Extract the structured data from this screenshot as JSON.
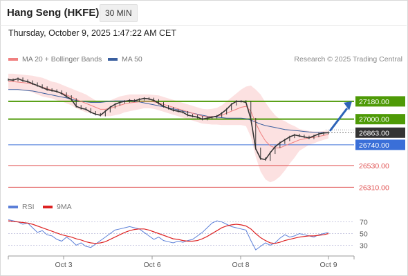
{
  "header": {
    "title": "Hang Seng (HKFE)",
    "timeframe": "30 MIN",
    "timestamp": "Thursday, October 9, 2025 1:47:22 AM CET"
  },
  "legend": {
    "ma20_label": "MA 20 + Bollinger Bands",
    "ma50_label": "MA 50",
    "ma20_color": "#f08080",
    "ma50_color": "#3a5f9f",
    "copyright": "Research © 2025 Trading Central"
  },
  "rsi_legend": {
    "rsi_label": "RSI",
    "ma9_label": "9MA",
    "rsi_color": "#5b7fd8",
    "ma9_color": "#dd2222"
  },
  "chart_data": [
    {
      "type": "line",
      "panel": "price",
      "ylim": [
        26180,
        27480
      ],
      "x_axis_labels": [
        "Oct 3",
        "Oct 6",
        "Oct 8",
        "Oct 9"
      ],
      "levels": [
        {
          "value": 27180.0,
          "label": "27180.00",
          "kind": "resistance",
          "color": "#4e9a06"
        },
        {
          "value": 27000.0,
          "label": "27000.00",
          "kind": "resistance",
          "color": "#4e9a06"
        },
        {
          "value": 26863.0,
          "label": "26863.00",
          "kind": "last-price",
          "color": "#333333"
        },
        {
          "value": 26740.0,
          "label": "26740.00",
          "kind": "pivot",
          "color": "#3a6fd8"
        },
        {
          "value": 26530.0,
          "label": "26530.00",
          "kind": "support",
          "color": "#e05050"
        },
        {
          "value": 26310.0,
          "label": "26310.00",
          "kind": "support",
          "color": "#e05050"
        }
      ],
      "forecast": {
        "from": 26880,
        "to": 27180,
        "color": "#2e64b8"
      },
      "series": [
        {
          "name": "Price",
          "color": "#333333",
          "values": [
            27400,
            27395,
            27410,
            27390,
            27380,
            27360,
            27340,
            27320,
            27300,
            27290,
            27280,
            27260,
            27230,
            27200,
            27130,
            27110,
            27100,
            27070,
            27050,
            27040,
            27080,
            27120,
            27150,
            27170,
            27180,
            27190,
            27185,
            27200,
            27210,
            27205,
            27190,
            27160,
            27130,
            27110,
            27090,
            27080,
            27070,
            27040,
            27030,
            27020,
            27000,
            27010,
            27020,
            27030,
            27060,
            27100,
            27150,
            27180,
            27180,
            27170,
            27000,
            26700,
            26600,
            26590,
            26660,
            26720,
            26760,
            26790,
            26820,
            26840,
            26830,
            26820,
            26810,
            26830,
            26850,
            26860,
            26863
          ]
        },
        {
          "name": "MA 20",
          "color": "#f08080",
          "values": [
            27380,
            27380,
            27375,
            27370,
            27365,
            27355,
            27340,
            27325,
            27310,
            27295,
            27280,
            27265,
            27245,
            27225,
            27200,
            27180,
            27160,
            27140,
            27120,
            27100,
            27100,
            27110,
            27125,
            27140,
            27155,
            27165,
            27170,
            27175,
            27180,
            27180,
            27175,
            27165,
            27150,
            27135,
            27120,
            27105,
            27090,
            27075,
            27060,
            27045,
            27030,
            27025,
            27025,
            27030,
            27040,
            27060,
            27080,
            27100,
            27120,
            27130,
            27080,
            26960,
            26860,
            26780,
            26730,
            26710,
            26710,
            26730,
            26750,
            26770,
            26790,
            26800,
            26810,
            26815,
            26825,
            26835,
            26845
          ]
        },
        {
          "name": "MA 50",
          "color": "#3a5f9f",
          "values": [
            27300,
            27300,
            27300,
            27295,
            27290,
            27285,
            27275,
            27265,
            27255,
            27245,
            27235,
            27225,
            27215,
            27200,
            27190,
            27180,
            27175,
            27170,
            27170,
            27170,
            27175,
            27180,
            27185,
            27185,
            27185,
            27185,
            27180,
            27175,
            27165,
            27155,
            27145,
            27135,
            27125,
            27115,
            27105,
            27095,
            27080,
            27070,
            27060,
            27050,
            27040,
            27030,
            27025,
            27020,
            27015,
            27010,
            27010,
            27010,
            27010,
            27005,
            26990,
            26970,
            26950,
            26935,
            26925,
            26915,
            26905,
            26895,
            26890,
            26885,
            26880,
            26875,
            26870,
            26868,
            26866,
            26865,
            26864
          ]
        },
        {
          "name": "BB Upper",
          "color": "#f7c8c8",
          "values": [
            27460,
            27460,
            27455,
            27450,
            27445,
            27440,
            27430,
            27420,
            27400,
            27380,
            27370,
            27350,
            27330,
            27310,
            27290,
            27270,
            27250,
            27220,
            27190,
            27170,
            27170,
            27190,
            27210,
            27230,
            27240,
            27250,
            27250,
            27250,
            27250,
            27250,
            27245,
            27240,
            27225,
            27210,
            27195,
            27180,
            27165,
            27150,
            27135,
            27120,
            27105,
            27100,
            27105,
            27115,
            27140,
            27180,
            27220,
            27260,
            27300,
            27330,
            27340,
            27300,
            27250,
            27170,
            27100,
            27040,
            27000,
            26980,
            26950,
            26930,
            26900,
            26890,
            26880,
            26875,
            26875,
            26880,
            26885
          ]
        },
        {
          "name": "BB Lower",
          "color": "#f7c8c8",
          "values": [
            27300,
            27300,
            27295,
            27290,
            27285,
            27270,
            27250,
            27230,
            27220,
            27210,
            27190,
            27180,
            27160,
            27140,
            27110,
            27090,
            27070,
            27060,
            27050,
            27030,
            27030,
            27030,
            27040,
            27050,
            27070,
            27080,
            27090,
            27100,
            27110,
            27110,
            27105,
            27090,
            27075,
            27060,
            27045,
            27030,
            27015,
            27000,
            26985,
            26970,
            26955,
            26950,
            26945,
            26945,
            26940,
            26940,
            26940,
            26940,
            26940,
            26930,
            26820,
            26620,
            26470,
            26390,
            26360,
            26380,
            26420,
            26480,
            26550,
            26610,
            26680,
            26710,
            26740,
            26755,
            26775,
            26790,
            26805
          ]
        }
      ]
    },
    {
      "type": "line",
      "panel": "rsi",
      "ylim": [
        15,
        85
      ],
      "y_ticks": [
        "70",
        "50",
        "30"
      ],
      "series": [
        {
          "name": "RSI",
          "color": "#5b7fd8",
          "values": [
            74,
            72,
            70,
            66,
            68,
            60,
            52,
            55,
            48,
            46,
            40,
            37,
            44,
            38,
            30,
            34,
            28,
            26,
            32,
            38,
            44,
            50,
            56,
            58,
            60,
            62,
            60,
            58,
            52,
            46,
            40,
            44,
            38,
            36,
            34,
            37,
            35,
            38,
            40,
            46,
            52,
            60,
            68,
            72,
            70,
            66,
            62,
            60,
            58,
            56,
            38,
            22,
            28,
            34,
            30,
            34,
            42,
            48,
            44,
            46,
            50,
            48,
            46,
            44,
            48,
            50,
            52
          ]
        },
        {
          "name": "9MA",
          "color": "#dd2222",
          "values": [
            72,
            71,
            70,
            69,
            68,
            66,
            63,
            60,
            57,
            54,
            51,
            48,
            46,
            44,
            41,
            39,
            36,
            34,
            33,
            34,
            36,
            40,
            44,
            48,
            52,
            55,
            57,
            58,
            58,
            56,
            53,
            50,
            47,
            44,
            41,
            40,
            38,
            37,
            37,
            38,
            41,
            45,
            50,
            55,
            60,
            63,
            65,
            66,
            65,
            63,
            58,
            50,
            43,
            38,
            34,
            33,
            35,
            38,
            40,
            42,
            44,
            45,
            46,
            46,
            47,
            48,
            50
          ]
        }
      ]
    }
  ]
}
